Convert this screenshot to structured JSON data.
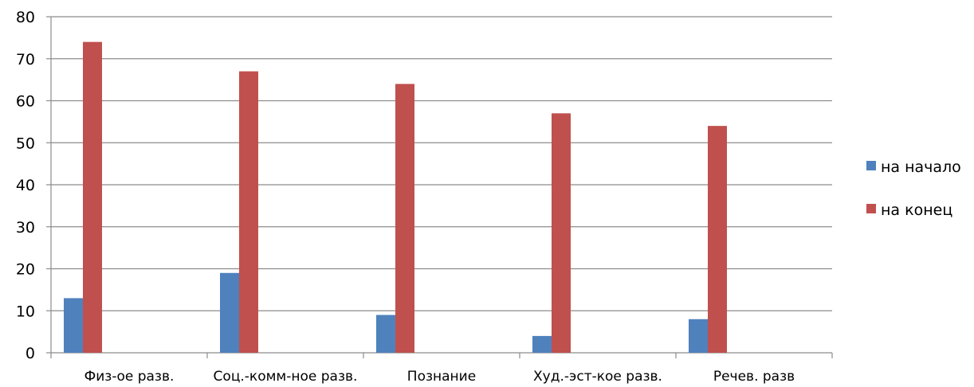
{
  "chart_data": {
    "type": "bar",
    "title": "",
    "xlabel": "",
    "ylabel": "",
    "categories": [
      "Физ-ое разв.",
      "Соц.-комм-ное разв.",
      "Познание",
      "Худ.-эст-кое разв.",
      "Речев. разв"
    ],
    "series": [
      {
        "name": "на начало",
        "color": "#4F81BD",
        "values": [
          13,
          19,
          9,
          4,
          8
        ]
      },
      {
        "name": "на конец",
        "color": "#C0504D",
        "values": [
          74,
          67,
          64,
          57,
          54
        ]
      }
    ],
    "ylim": [
      0,
      80
    ],
    "yticks": [
      0,
      10,
      20,
      30,
      40,
      50,
      60,
      70,
      80
    ],
    "grid": true,
    "legend": "right"
  }
}
